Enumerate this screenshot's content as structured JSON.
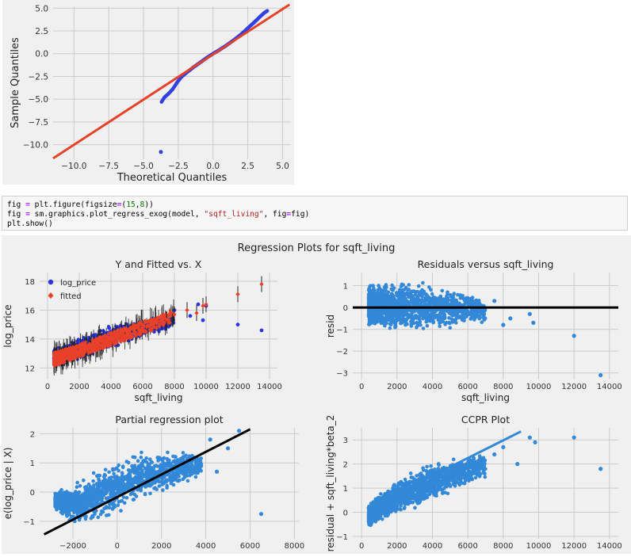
{
  "qq_plot": {
    "chart_data": {
      "type": "scatter",
      "title": "",
      "xlabel": "Theoretical Quantiles",
      "ylabel": "Sample Quantiles",
      "xlim": [
        -11.5,
        5.6
      ],
      "ylim": [
        -11.6,
        5.2
      ],
      "xticks": [
        -10.0,
        -7.5,
        -5.0,
        -2.5,
        0.0,
        2.5,
        5.0
      ],
      "yticks": [
        -10.0,
        -7.5,
        -5.0,
        -2.5,
        0.0,
        2.5,
        5.0
      ],
      "xtick_labels": [
        "−10.0",
        "−7.5",
        "−5.0",
        "−2.5",
        "0.0",
        "2.5",
        "5.0"
      ],
      "ytick_labels": [
        "−10.0",
        "−7.5",
        "−5.0",
        "−2.5",
        "0.0",
        "2.5",
        "5.0"
      ],
      "grid": true,
      "reference_line": [
        [
          -11.5,
          -11.5
        ],
        [
          5.5,
          5.4
        ]
      ],
      "points_color": "#3341e0",
      "line_color": "#e8412a",
      "quantile_curve": [
        [
          -3.7,
          -5.3
        ],
        [
          -3.5,
          -4.8
        ],
        [
          -3.2,
          -4.4
        ],
        [
          -2.9,
          -3.9
        ],
        [
          -2.6,
          -3.2
        ],
        [
          -2.3,
          -2.6
        ],
        [
          -2.0,
          -2.2
        ],
        [
          -1.5,
          -1.6
        ],
        [
          -1.0,
          -1.05
        ],
        [
          -0.5,
          -0.5
        ],
        [
          0.0,
          0.0
        ],
        [
          0.5,
          0.45
        ],
        [
          1.0,
          0.95
        ],
        [
          1.5,
          1.5
        ],
        [
          2.0,
          2.1
        ],
        [
          2.5,
          2.8
        ],
        [
          3.0,
          3.5
        ],
        [
          3.4,
          4.1
        ],
        [
          3.7,
          4.5
        ],
        [
          3.9,
          4.7
        ]
      ],
      "outliers": [
        [
          -3.75,
          -10.8
        ]
      ]
    }
  },
  "code": {
    "line1": {
      "a": "fig ",
      "op": "=",
      "b": " plt.figure(figsize",
      "op2": "=",
      "c": "(",
      "n1": "15",
      "d": ",",
      "n2": "8",
      "e": "))"
    },
    "line2": {
      "a": "fig ",
      "op": "=",
      "b": " sm.graphics.plot_regress_exog(model, ",
      "s": "\"sqft_living\"",
      "c": ", fig",
      "op2": "=",
      "d": "fig)"
    },
    "line3": "plt.show()"
  },
  "regression_figure": {
    "suptitle": "Regression Plots for sqft_living",
    "chart_data": [
      {
        "type": "scatter",
        "title": "Y and Fitted vs. X",
        "xlabel": "sqft_living",
        "ylabel": "log_price",
        "xlim": [
          -500,
          14500
        ],
        "ylim": [
          11.2,
          18.6
        ],
        "xticks": [
          0,
          2000,
          4000,
          6000,
          8000,
          10000,
          12000,
          14000
        ],
        "yticks": [
          12,
          14,
          16,
          18
        ],
        "legend": {
          "placement": "top-left",
          "entries": [
            "log_price",
            "fitted"
          ]
        },
        "series": [
          {
            "name": "log_price",
            "color": "#2a34e6",
            "marker": "circle",
            "bulk_lower": [
              [
                400,
                12.0
              ],
              [
                1000,
                12.1
              ],
              [
                2000,
                12.5
              ],
              [
                3000,
                12.9
              ],
              [
                4000,
                13.3
              ],
              [
                5000,
                13.6
              ],
              [
                6000,
                14.0
              ],
              [
                7000,
                14.4
              ],
              [
                8000,
                14.8
              ]
            ],
            "bulk_upper": [
              [
                400,
                13.4
              ],
              [
                1000,
                13.6
              ],
              [
                2000,
                14.1
              ],
              [
                3000,
                14.6
              ],
              [
                4000,
                15.0
              ],
              [
                5000,
                15.2
              ],
              [
                6000,
                15.4
              ],
              [
                7000,
                15.6
              ],
              [
                8000,
                15.8
              ]
            ],
            "outliers": [
              [
                8000,
                16.0
              ],
              [
                9000,
                15.6
              ],
              [
                9500,
                16.4
              ],
              [
                9800,
                15.3
              ],
              [
                10000,
                16.3
              ],
              [
                12000,
                15.0
              ],
              [
                13500,
                14.6
              ]
            ]
          },
          {
            "name": "fitted",
            "color": "#e8412a",
            "marker": "diamond",
            "points": [
              [
                400,
                12.6
              ],
              [
                1000,
                12.8
              ],
              [
                2000,
                13.2
              ],
              [
                3000,
                13.6
              ],
              [
                4000,
                14.0
              ],
              [
                5000,
                14.4
              ],
              [
                6000,
                14.8
              ],
              [
                7000,
                15.2
              ],
              [
                7500,
                15.35
              ],
              [
                8000,
                15.7
              ],
              [
                8800,
                16.0
              ],
              [
                9400,
                15.8
              ],
              [
                9800,
                16.3
              ],
              [
                10000,
                16.4
              ],
              [
                12000,
                17.1
              ],
              [
                13500,
                17.8
              ]
            ]
          }
        ]
      },
      {
        "type": "scatter",
        "title": "Residuals versus sqft_living",
        "xlabel": "sqft_living",
        "ylabel": "resid",
        "xlim": [
          -500,
          14500
        ],
        "ylim": [
          -3.3,
          1.6
        ],
        "xticks": [
          0,
          2000,
          4000,
          6000,
          8000,
          10000,
          12000,
          14000
        ],
        "yticks": [
          -3,
          -2,
          -1,
          0,
          1
        ],
        "series": [
          {
            "name": "",
            "color": "#3388d8",
            "marker": "circle",
            "bulk_lower": [
              [
                400,
                -1.1
              ],
              [
                2000,
                -1.2
              ],
              [
                4000,
                -1.15
              ],
              [
                6000,
                -0.9
              ],
              [
                7000,
                -0.7
              ]
            ],
            "bulk_upper": [
              [
                400,
                1.2
              ],
              [
                2000,
                1.3
              ],
              [
                3000,
                1.4
              ],
              [
                4000,
                1.1
              ],
              [
                6000,
                0.8
              ],
              [
                7000,
                0.5
              ]
            ],
            "outliers": [
              [
                7500,
                0.3
              ],
              [
                8000,
                -0.8
              ],
              [
                8400,
                -0.5
              ],
              [
                9500,
                -0.3
              ],
              [
                9700,
                -0.7
              ],
              [
                12000,
                -1.3
              ],
              [
                13500,
                -3.1
              ]
            ]
          }
        ],
        "zero_line": 0
      },
      {
        "type": "scatter",
        "title": "Partial regression plot",
        "xlabel": "",
        "ylabel": "e(log_price | X)",
        "xlim": [
          -3500,
          8200
        ],
        "ylim": [
          -1.6,
          2.2
        ],
        "xticks": [
          -2000,
          0,
          2000,
          4000,
          6000,
          8000
        ],
        "yticks": [
          -1,
          0,
          1,
          2
        ],
        "series": [
          {
            "name": "",
            "color": "#3388d8",
            "marker": "circle",
            "bulk_lower": [
              [
                -2800,
                -0.6
              ],
              [
                -2000,
                -1.2
              ],
              [
                -1000,
                -1.1
              ],
              [
                0,
                -0.8
              ],
              [
                1000,
                -0.5
              ],
              [
                2000,
                -0.2
              ],
              [
                3000,
                0.2
              ],
              [
                3800,
                0.5
              ]
            ],
            "bulk_upper": [
              [
                -2800,
                0.0
              ],
              [
                -2000,
                0.3
              ],
              [
                -1000,
                0.8
              ],
              [
                0,
                1.2
              ],
              [
                1000,
                1.45
              ],
              [
                2000,
                1.6
              ],
              [
                3000,
                1.5
              ],
              [
                3800,
                1.3
              ]
            ],
            "outliers": [
              [
                4200,
                1.8
              ],
              [
                4500,
                0.7
              ],
              [
                5000,
                1.5
              ],
              [
                5500,
                2.1
              ],
              [
                6500,
                -0.75
              ]
            ]
          }
        ],
        "fit_line": [
          [
            -3300,
            -1.45
          ],
          [
            6000,
            2.15
          ]
        ]
      },
      {
        "type": "scatter",
        "title": "CCPR Plot",
        "xlabel": "",
        "ylabel": "residual + sqft_living*beta_2",
        "xlim": [
          -500,
          14500
        ],
        "ylim": [
          -1.1,
          3.5
        ],
        "xticks": [
          0,
          2000,
          4000,
          6000,
          8000,
          10000,
          12000,
          14000
        ],
        "yticks": [
          -1,
          0,
          1,
          2,
          3
        ],
        "series": [
          {
            "name": "",
            "color": "#3388d8",
            "marker": "circle",
            "bulk_lower": [
              [
                400,
                -0.7
              ],
              [
                1000,
                -0.5
              ],
              [
                2000,
                -0.2
              ],
              [
                3000,
                0.1
              ],
              [
                4000,
                0.4
              ],
              [
                5000,
                0.7
              ],
              [
                6000,
                1.0
              ],
              [
                7000,
                1.3
              ]
            ],
            "bulk_upper": [
              [
                400,
                0.3
              ],
              [
                1000,
                0.9
              ],
              [
                2000,
                1.4
              ],
              [
                3000,
                1.8
              ],
              [
                4000,
                2.1
              ],
              [
                5000,
                2.3
              ],
              [
                6000,
                2.5
              ],
              [
                7000,
                2.6
              ]
            ],
            "outliers": [
              [
                7500,
                2.4
              ],
              [
                8000,
                2.7
              ],
              [
                8800,
                2.0
              ],
              [
                9500,
                3.1
              ],
              [
                9800,
                2.9
              ],
              [
                12000,
                3.1
              ],
              [
                13500,
                1.8
              ]
            ]
          }
        ],
        "fit_line": [
          [
            300,
            0.15
          ],
          [
            9000,
            3.35
          ]
        ]
      }
    ]
  }
}
